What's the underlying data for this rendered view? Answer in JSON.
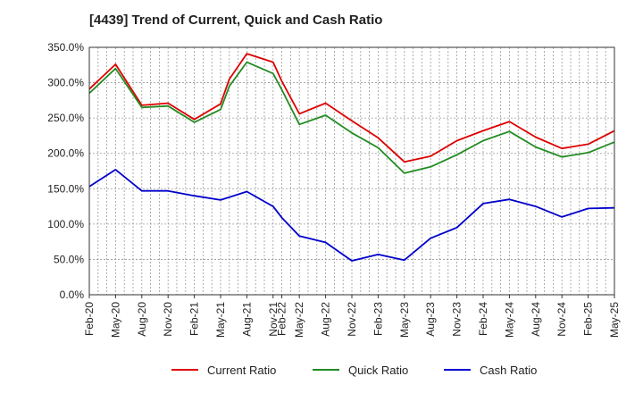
{
  "chart_data": {
    "type": "line",
    "title": "[4439]  Trend of Current, Quick and Cash Ratio",
    "xlabel": "",
    "ylabel": "",
    "ylim": [
      0,
      350
    ],
    "yticks": [
      "0.0%",
      "50.0%",
      "100.0%",
      "150.0%",
      "200.0%",
      "250.0%",
      "300.0%",
      "350.0%"
    ],
    "categories": [
      "Feb-20",
      "May-20",
      "Aug-20",
      "Nov-20",
      "Feb-21",
      "May-21",
      "Aug-21",
      "Nov-21",
      "Feb-22",
      "May-22",
      "Aug-22",
      "Nov-22",
      "Feb-23",
      "May-23",
      "Aug-23",
      "Nov-23",
      "Feb-24",
      "May-24",
      "Aug-24",
      "Nov-24",
      "Feb-25",
      "May-25"
    ],
    "x": [
      0,
      3,
      6,
      9,
      12,
      15,
      18,
      21,
      22,
      24,
      27,
      30,
      33,
      36,
      39,
      42,
      45,
      48,
      51,
      54,
      57,
      60
    ],
    "grid": true,
    "legend_position": "bottom",
    "series": [
      {
        "name": "Current Ratio",
        "color": "#dd0000",
        "x": [
          0,
          3,
          6,
          9,
          12,
          15,
          16,
          18,
          21,
          22,
          24,
          27,
          30,
          33,
          36,
          39,
          42,
          45,
          48,
          51,
          54,
          57,
          60
        ],
        "values": [
          291,
          326,
          268,
          271,
          248,
          270,
          305,
          341,
          329,
          302,
          256,
          271,
          246,
          222,
          188,
          196,
          218,
          232,
          245,
          223,
          207,
          213,
          232
        ]
      },
      {
        "name": "Quick Ratio",
        "color": "#228b22",
        "x": [
          0,
          3,
          6,
          9,
          12,
          15,
          16,
          18,
          21,
          22,
          24,
          27,
          30,
          33,
          36,
          39,
          42,
          45,
          48,
          51,
          54,
          57,
          60
        ],
        "values": [
          285,
          320,
          265,
          267,
          244,
          262,
          295,
          329,
          313,
          290,
          241,
          254,
          229,
          208,
          172,
          181,
          198,
          218,
          231,
          209,
          195,
          201,
          216
        ]
      },
      {
        "name": "Cash Ratio",
        "color": "#0000cc",
        "x": [
          0,
          3,
          6,
          9,
          12,
          15,
          18,
          21,
          22,
          24,
          27,
          30,
          33,
          36,
          39,
          42,
          45,
          48,
          51,
          54,
          57,
          60
        ],
        "values": [
          153,
          177,
          147,
          147,
          140,
          134,
          146,
          125,
          109,
          83,
          74,
          48,
          57,
          49,
          80,
          95,
          129,
          135,
          125,
          110,
          122,
          123
        ]
      }
    ]
  }
}
